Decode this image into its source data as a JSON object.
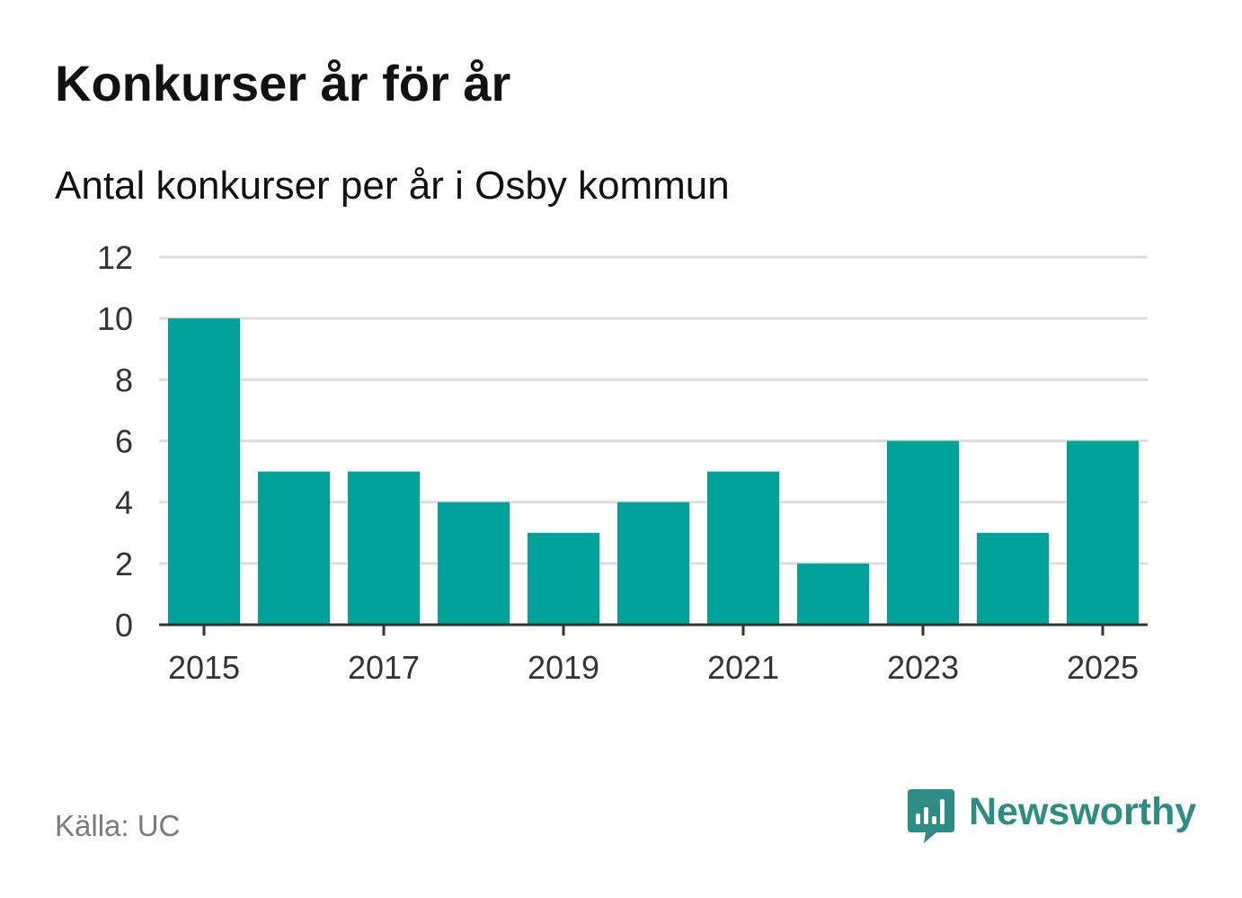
{
  "title": "Konkurser år för år",
  "subtitle": "Antal konkurser per år i Osby kommun",
  "source": "Källa: UC",
  "brand": {
    "name": "Newsworthy",
    "color": "#2e8c84",
    "icon": "newsworthy-bar-chart-icon"
  },
  "colors": {
    "bar": "#00a29a",
    "grid": "#dddddd",
    "axis": "#333333"
  },
  "chart_data": {
    "type": "bar",
    "title": "Konkurser år för år",
    "subtitle": "Antal konkurser per år i Osby kommun",
    "xlabel": "",
    "ylabel": "",
    "categories": [
      "2015",
      "2016",
      "2017",
      "2018",
      "2019",
      "2020",
      "2021",
      "2022",
      "2023",
      "2024",
      "2025"
    ],
    "values": [
      10,
      5,
      5,
      4,
      3,
      4,
      5,
      2,
      6,
      3,
      6
    ],
    "x_tick_labels": [
      "2015",
      "2017",
      "2019",
      "2021",
      "2023",
      "2025"
    ],
    "y_ticks": [
      0,
      2,
      4,
      6,
      8,
      10,
      12
    ],
    "ylim": [
      0,
      12
    ],
    "grid": true,
    "legend": "none"
  }
}
